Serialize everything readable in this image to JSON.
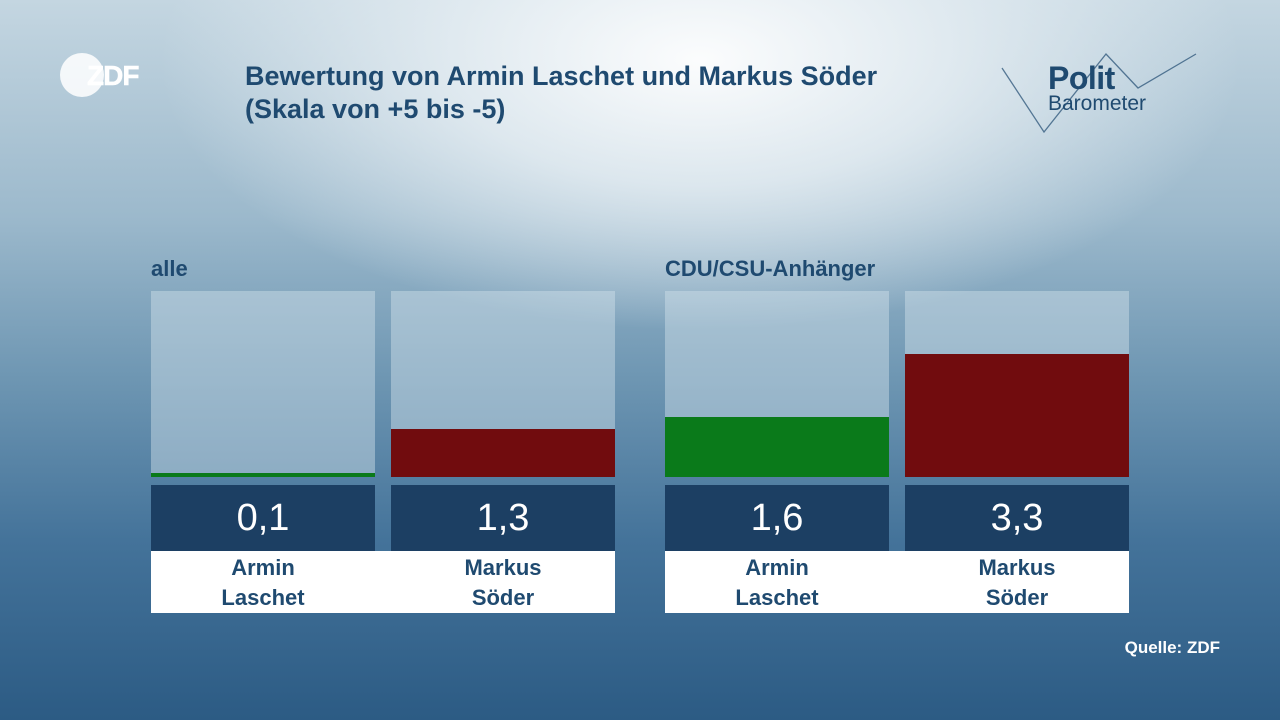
{
  "logo": {
    "text": "ZDF"
  },
  "title": {
    "line1": "Bewertung von Armin Laschet und Markus Söder",
    "line2": "(Skala von +5 bis -5)"
  },
  "brand": {
    "word1": "Polit",
    "word2": "Barometer"
  },
  "colors": {
    "positive_green": "#0a7a1a",
    "positive_red": "#710c0e",
    "value_box": "#1c3f63",
    "text_blue": "#1f4a70"
  },
  "chart_data": {
    "type": "bar",
    "title": "Bewertung von Armin Laschet und Markus Söder (Skala von +5 bis -5)",
    "ylim": [
      0,
      5
    ],
    "groups": [
      {
        "label": "alle",
        "bars": [
          {
            "name_line1": "Armin",
            "name_line2": "Laschet",
            "value": 0.1,
            "value_label": "0,1",
            "color": "#0a7a1a"
          },
          {
            "name_line1": "Markus",
            "name_line2": "Söder",
            "value": 1.3,
            "value_label": "1,3",
            "color": "#710c0e"
          }
        ]
      },
      {
        "label": "CDU/CSU-Anhänger",
        "bars": [
          {
            "name_line1": "Armin",
            "name_line2": "Laschet",
            "value": 1.6,
            "value_label": "1,6",
            "color": "#0a7a1a"
          },
          {
            "name_line1": "Markus",
            "name_line2": "Söder",
            "value": 3.3,
            "value_label": "3,3",
            "color": "#710c0e"
          }
        ]
      }
    ]
  },
  "source": "Quelle: ZDF"
}
